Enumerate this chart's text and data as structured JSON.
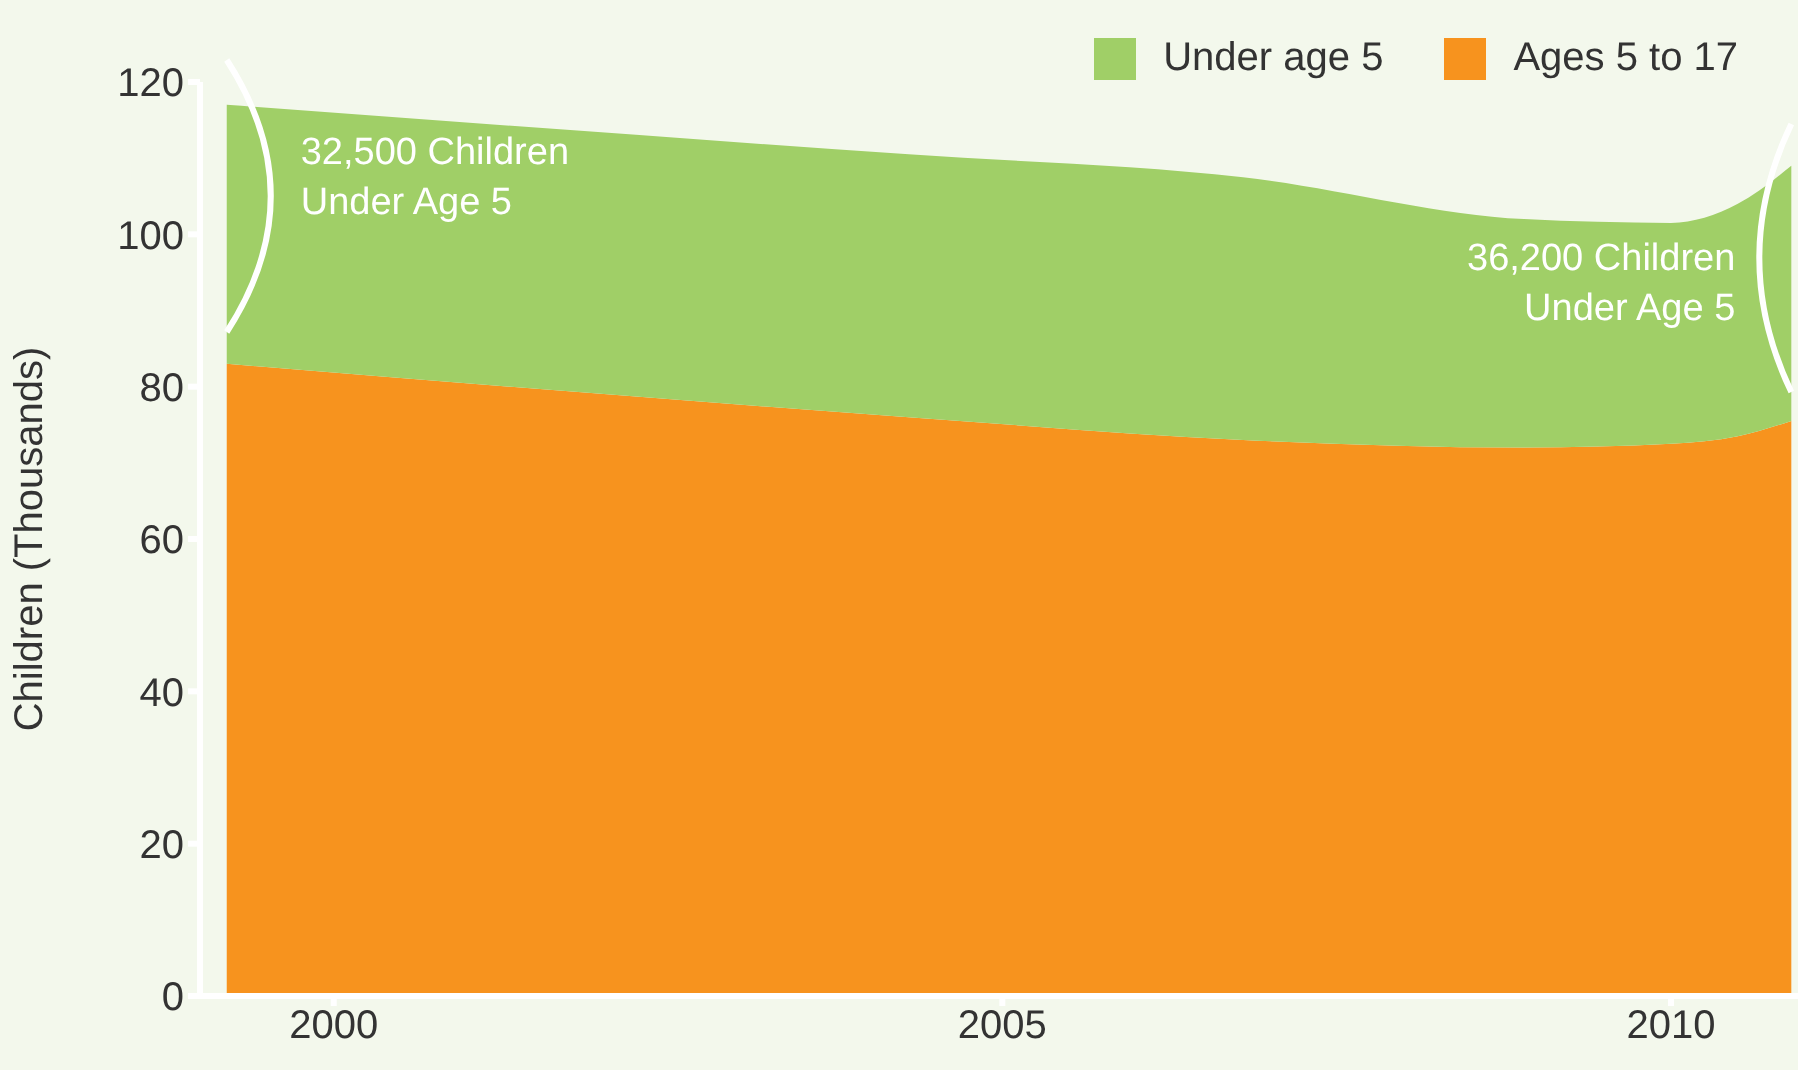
{
  "chart_data": {
    "type": "area",
    "ylabel": "Children (Thousands)",
    "x": [
      1999.2,
      2004.3,
      2006.8,
      2008.9,
      2010.0,
      2010.5,
      2010.9
    ],
    "series": [
      {
        "name": "Ages 5 to 17",
        "color": "#f7931e",
        "values": [
          83,
          76,
          73,
          72,
          72.5,
          73.5,
          75.5
        ]
      },
      {
        "name": "Under age 5",
        "color": "#a0cf67",
        "values": [
          34,
          34.5,
          34.5,
          30,
          29,
          30.5,
          33.5
        ]
      }
    ],
    "stacked": true,
    "xlim": [
      1999.0,
      2010.95
    ],
    "xticks": [
      2000,
      2005,
      2010
    ],
    "ylim": [
      0,
      120
    ],
    "yticks": [
      0,
      20,
      40,
      60,
      80,
      100,
      120
    ],
    "legend": "top right",
    "grid": false,
    "annotations": [
      "32,500 Children\nUnder Age 5",
      "36,200 Children\nUnder Age 5"
    ]
  }
}
